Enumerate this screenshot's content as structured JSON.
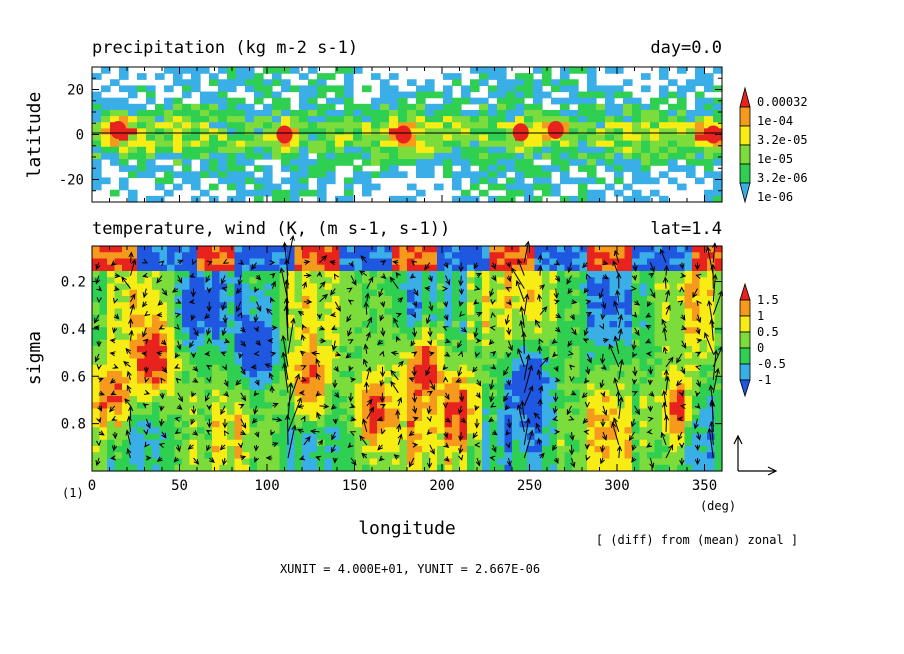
{
  "chart_data": [
    {
      "type": "heatmap",
      "title": "precipitation (kg m-2 s-1)",
      "title_right": "day=0.0",
      "ylabel": "latitude",
      "xlim": [
        0,
        360
      ],
      "ylim": [
        -30,
        30
      ],
      "yticks": [
        "20",
        "0",
        "-20"
      ],
      "ytick_values": [
        20,
        0,
        -20
      ],
      "colorbar": {
        "labels": [
          "0.00032",
          "1e-04",
          "3.2e-05",
          "1e-05",
          "3.2e-06",
          "1e-06"
        ],
        "colors": [
          "#e8231e",
          "#f59a1c",
          "#f7ec14",
          "#7bdc3c",
          "#2fcf52",
          "#3aaee6"
        ],
        "scale": "log"
      },
      "hotspots": [
        {
          "lon": 15,
          "lat": 2,
          "level": 4
        },
        {
          "lon": 110,
          "lat": 0,
          "level": 5
        },
        {
          "lon": 178,
          "lat": 0,
          "level": 5
        },
        {
          "lon": 245,
          "lat": 1,
          "level": 5
        },
        {
          "lon": 265,
          "lat": 2,
          "level": 5
        },
        {
          "lon": 355,
          "lat": 0,
          "level": 5
        }
      ]
    },
    {
      "type": "heatmap",
      "title": "temperature, wind (K, (m s-1, s-1))",
      "title_right": "lat=1.4",
      "xlabel": "longitude",
      "ylabel": "sigma",
      "xlim": [
        0,
        360
      ],
      "ylim": [
        1.0,
        0.05
      ],
      "xticks": [
        "0",
        "50",
        "100",
        "150",
        "200",
        "250",
        "300",
        "350"
      ],
      "xtick_values": [
        0,
        50,
        100,
        150,
        200,
        250,
        300,
        350
      ],
      "yticks": [
        "0.2",
        "0.4",
        "0.6",
        "0.8"
      ],
      "ytick_values": [
        0.2,
        0.4,
        0.6,
        0.8
      ],
      "x_unit_label": "(deg)",
      "colorbar": {
        "labels": [
          "1.5",
          "1",
          "0.5",
          "0",
          "-0.5",
          "-1"
        ],
        "colors": [
          "#e8231e",
          "#f59a1c",
          "#f7ec14",
          "#7bdc3c",
          "#2fcf52",
          "#3aaee6",
          "#1f57e0"
        ]
      },
      "anomalies": [
        {
          "lon": 35,
          "sigma": 0.55,
          "value": 1.5
        },
        {
          "lon": 12,
          "sigma": 0.7,
          "value": 1.5
        },
        {
          "lon": 125,
          "sigma": 0.65,
          "value": 1.5
        },
        {
          "lon": 162,
          "sigma": 0.75,
          "value": 1.5
        },
        {
          "lon": 190,
          "sigma": 0.55,
          "value": 1.5
        },
        {
          "lon": 212,
          "sigma": 0.75,
          "value": 1.2
        },
        {
          "lon": 335,
          "sigma": 0.75,
          "value": 1.5
        },
        {
          "lon": 250,
          "sigma": 0.6,
          "value": -1.2
        },
        {
          "lon": 95,
          "sigma": 0.5,
          "value": -1.2
        },
        {
          "lon": 60,
          "sigma": 0.3,
          "value": -1.0
        }
      ],
      "wind_reference": {
        "x_unit": "4.000E+01",
        "y_unit": "2.667E-06"
      }
    }
  ],
  "labels": {
    "panel_number": "(1)",
    "footnote": "[ (diff) from (mean) zonal ]",
    "unit_line": "XUNIT = 4.000E+01, YUNIT = 2.667E-06"
  }
}
